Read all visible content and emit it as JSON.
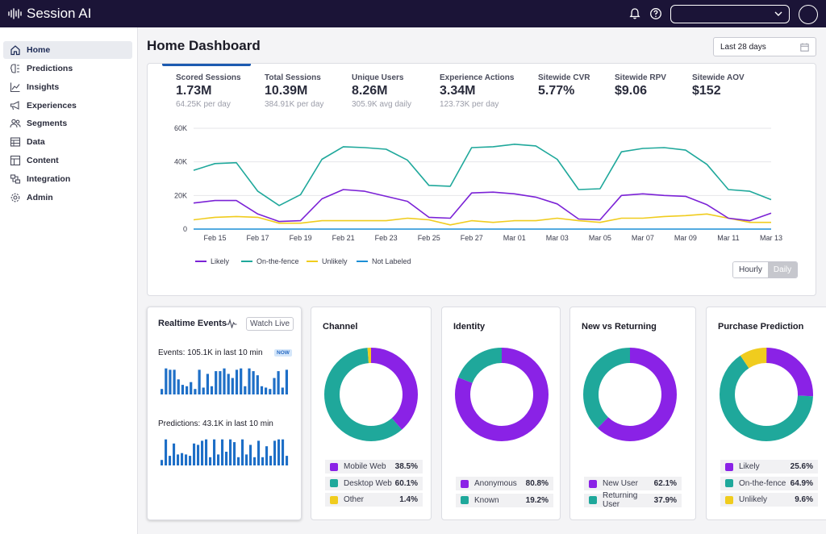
{
  "app": {
    "name": "Session AI"
  },
  "topbar": {
    "selector_value": ""
  },
  "sidebar": {
    "items": [
      {
        "label": "Home",
        "icon": "home-icon"
      },
      {
        "label": "Predictions",
        "icon": "brain-icon"
      },
      {
        "label": "Insights",
        "icon": "line-chart-icon"
      },
      {
        "label": "Experiences",
        "icon": "megaphone-icon"
      },
      {
        "label": "Segments",
        "icon": "users-icon"
      },
      {
        "label": "Data",
        "icon": "table-icon"
      },
      {
        "label": "Content",
        "icon": "layout-icon"
      },
      {
        "label": "Integration",
        "icon": "plug-icon"
      },
      {
        "label": "Admin",
        "icon": "gear-icon"
      }
    ]
  },
  "page": {
    "title": "Home Dashboard",
    "date_range": "Last 28 days"
  },
  "metrics": [
    {
      "label": "Scored Sessions",
      "value": "1.73M",
      "sub": "64.25K per day"
    },
    {
      "label": "Total Sessions",
      "value": "10.39M",
      "sub": "384.91K per day"
    },
    {
      "label": "Unique Users",
      "value": "8.26M",
      "sub": "305.9K avg daily"
    },
    {
      "label": "Experience Actions",
      "value": "3.34M",
      "sub": "123.73K per day"
    },
    {
      "label": "Sitewide CVR",
      "value": "5.77%",
      "sub": ""
    },
    {
      "label": "Sitewide RPV",
      "value": "$9.06",
      "sub": ""
    },
    {
      "label": "Sitewide AOV",
      "value": "$152",
      "sub": ""
    }
  ],
  "chart_data": {
    "type": "line",
    "x": [
      "Feb 14",
      "Feb 15",
      "Feb 16",
      "Feb 17",
      "Feb 18",
      "Feb 19",
      "Feb 20",
      "Feb 21",
      "Feb 22",
      "Feb 23",
      "Feb 24",
      "Feb 25",
      "Feb 26",
      "Feb 27",
      "Feb 28",
      "Mar 01",
      "Mar 02",
      "Mar 03",
      "Mar 04",
      "Mar 05",
      "Mar 06",
      "Mar 07",
      "Mar 08",
      "Mar 09",
      "Mar 10",
      "Mar 11",
      "Mar 12",
      "Mar 13"
    ],
    "xticks": [
      "Feb 15",
      "Feb 17",
      "Feb 19",
      "Feb 21",
      "Feb 23",
      "Feb 25",
      "Feb 27",
      "Mar 01",
      "Mar 03",
      "Mar 05",
      "Mar 07",
      "Mar 09",
      "Mar 11",
      "Mar 13"
    ],
    "yticks": [
      "0",
      "20K",
      "40K",
      "60K"
    ],
    "ylim": [
      0,
      60000
    ],
    "grid": true,
    "legend_position": "bottom-left",
    "series": [
      {
        "name": "Likely",
        "color": "#7b22d6",
        "values": [
          15500,
          17000,
          17000,
          9000,
          4500,
          5000,
          18000,
          23500,
          22500,
          19500,
          16500,
          7000,
          6500,
          21500,
          22000,
          21000,
          19000,
          15000,
          6000,
          5500,
          20000,
          21000,
          20000,
          19500,
          14500,
          6500,
          5000,
          9500
        ]
      },
      {
        "name": "On-the-fence",
        "color": "#1fa89b",
        "values": [
          35000,
          39000,
          39500,
          22500,
          14000,
          20500,
          41500,
          49000,
          48500,
          47500,
          41000,
          26000,
          25500,
          48500,
          49000,
          50500,
          49500,
          41500,
          23500,
          24000,
          46000,
          48000,
          48500,
          47000,
          38500,
          23500,
          22500,
          17500
        ]
      },
      {
        "name": "Unlikely",
        "color": "#f0cc1e",
        "values": [
          5500,
          7000,
          7500,
          7000,
          3500,
          3500,
          5000,
          5000,
          5000,
          5000,
          6500,
          5500,
          2500,
          5000,
          4000,
          5000,
          5000,
          6500,
          5000,
          4000,
          6500,
          6500,
          7500,
          8000,
          9000,
          6500,
          4000,
          4000
        ]
      },
      {
        "name": "Not Labeled",
        "color": "#1c8fd6",
        "values": [
          0,
          0,
          0,
          0,
          0,
          0,
          0,
          0,
          0,
          0,
          0,
          0,
          0,
          0,
          0,
          0,
          0,
          0,
          0,
          0,
          0,
          0,
          0,
          0,
          0,
          0,
          0,
          0
        ]
      }
    ]
  },
  "granularity": {
    "hourly": "Hourly",
    "daily": "Daily",
    "selected": "Daily"
  },
  "realtime": {
    "title": "Realtime Events",
    "watch_label": "Watch Live",
    "events_label": "Events:",
    "events_value": "105.1K in last 10 min",
    "now_badge": "NOW",
    "predictions_label": "Predictions:",
    "predictions_value": "43.1K in last 10 min",
    "bar_color": "#1e6fc7",
    "events_bars": [
      0.2,
      0.95,
      0.9,
      0.9,
      0.55,
      0.35,
      0.3,
      0.45,
      0.2,
      0.9,
      0.25,
      0.75,
      0.3,
      0.85,
      0.85,
      0.95,
      0.75,
      0.6,
      0.9,
      0.95,
      0.3,
      0.95,
      0.85,
      0.7,
      0.3,
      0.25,
      0.2,
      0.6,
      0.85,
      0.25,
      0.9
    ],
    "predictions_bars": [
      0.2,
      0.95,
      0.35,
      0.8,
      0.4,
      0.45,
      0.4,
      0.35,
      0.8,
      0.75,
      0.9,
      0.95,
      0.3,
      0.95,
      0.4,
      0.95,
      0.5,
      0.95,
      0.85,
      0.3,
      0.95,
      0.4,
      0.75,
      0.3,
      0.9,
      0.3,
      0.7,
      0.35,
      0.9,
      0.95,
      0.95,
      0.35
    ]
  },
  "donuts": [
    {
      "title": "Channel",
      "segments": [
        {
          "label": "Mobile Web",
          "value": "38.5%",
          "pct": 38.5,
          "color": "#8a22e6"
        },
        {
          "label": "Desktop Web",
          "value": "60.1%",
          "pct": 60.1,
          "color": "#1fa89b"
        },
        {
          "label": "Other",
          "value": "1.4%",
          "pct": 1.4,
          "color": "#f0cc1e"
        }
      ]
    },
    {
      "title": "Identity",
      "segments": [
        {
          "label": "Anonymous",
          "value": "80.8%",
          "pct": 80.8,
          "color": "#8a22e6"
        },
        {
          "label": "Known",
          "value": "19.2%",
          "pct": 19.2,
          "color": "#1fa89b"
        }
      ]
    },
    {
      "title": "New vs Returning",
      "segments": [
        {
          "label": "New User",
          "value": "62.1%",
          "pct": 62.1,
          "color": "#8a22e6"
        },
        {
          "label": "Returning User",
          "value": "37.9%",
          "pct": 37.9,
          "color": "#1fa89b"
        }
      ]
    },
    {
      "title": "Purchase Prediction",
      "segments": [
        {
          "label": "Likely",
          "value": "25.6%",
          "pct": 25.6,
          "color": "#8a22e6"
        },
        {
          "label": "On-the-fence",
          "value": "64.9%",
          "pct": 64.9,
          "color": "#1fa89b"
        },
        {
          "label": "Unlikely",
          "value": "9.6%",
          "pct": 9.6,
          "color": "#f0cc1e"
        }
      ]
    }
  ]
}
